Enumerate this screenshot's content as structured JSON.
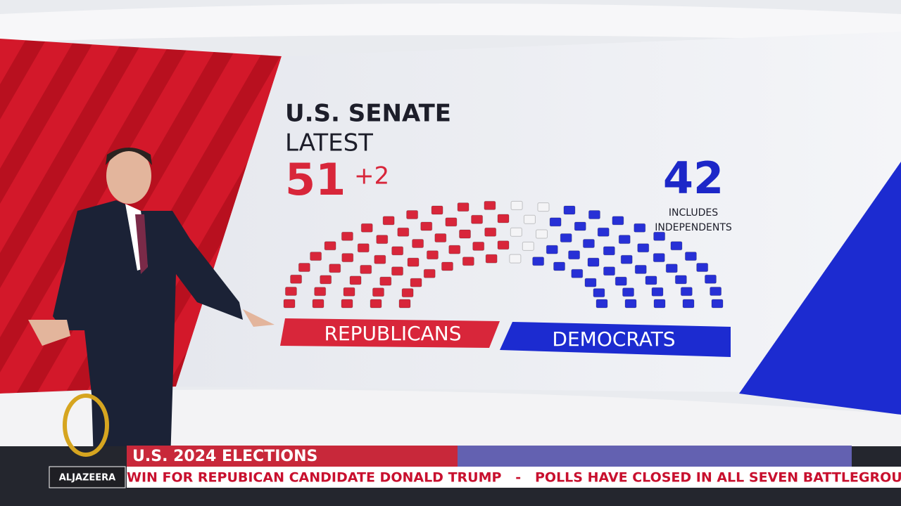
{
  "header": {
    "title": "U.S. SENATE",
    "subtitle": "LATEST"
  },
  "republicans": {
    "seats": 51,
    "seats_label": "51",
    "change": "+2",
    "label": "REPUBLICANS",
    "color": "#d8263a"
  },
  "democrats": {
    "seats": 42,
    "seats_label": "42",
    "note": [
      "INCLUDES",
      "INDEPENDENTS"
    ],
    "label": "DEMOCRATS",
    "color": "#2730d6"
  },
  "lower_third": {
    "title": "U.S. 2024 ELECTIONS",
    "ticker": "WIN FOR REPUBICAN CANDIDATE DONALD TRUMP   -   POLLS HAVE CLOSED IN ALL SEVEN BATTLEGROUND S",
    "logo": "ALJAZEERA"
  }
}
